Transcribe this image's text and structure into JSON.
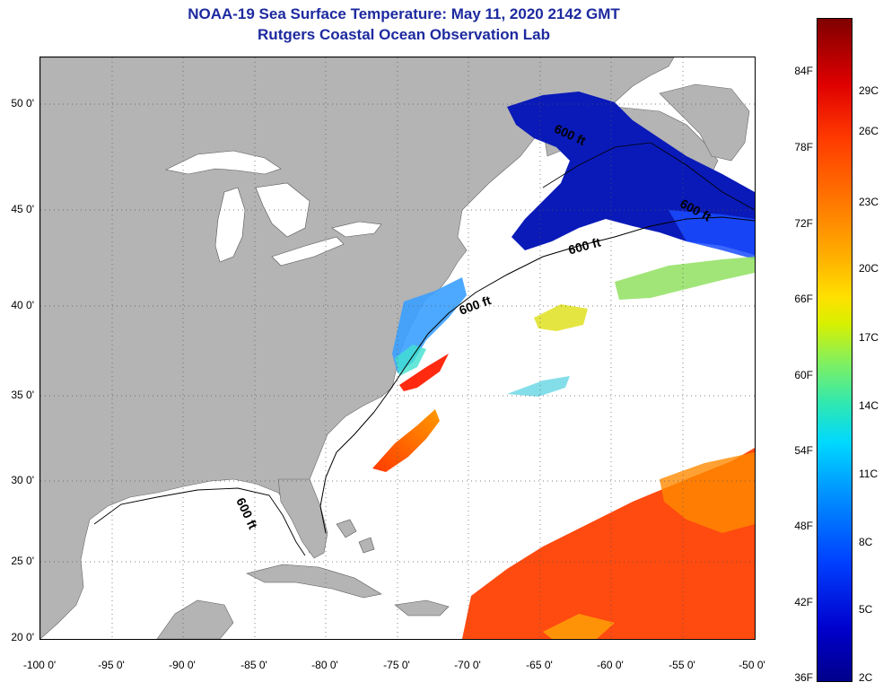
{
  "title": {
    "line1": "NOAA-19 Sea Surface Temperature:  May 11, 2020 2142 GMT",
    "line2": "Rutgers Coastal Ocean Observation Lab"
  },
  "map": {
    "lat_labels": [
      "50 0'",
      "45 0'",
      "40 0'",
      "35 0'",
      "30 0'",
      "25 0'",
      "20 0'"
    ],
    "lon_labels": [
      "-100 0'",
      "-95 0'",
      "-90 0'",
      "-85 0'",
      "-80 0'",
      "-75 0'",
      "-70 0'",
      "-65 0'",
      "-60 0'",
      "-55 0'",
      "-50 0'"
    ],
    "contour_labels": [
      "600 ft",
      "600 ft",
      "600 ft",
      "600 ft",
      "600 ft"
    ],
    "land_color": "#b4b4b4",
    "no_data_color": "#ffffff"
  },
  "colorbar": {
    "fahrenheit_labels": [
      "84F",
      "78F",
      "72F",
      "66F",
      "60F",
      "54F",
      "48F",
      "42F",
      "36F"
    ],
    "celsius_labels": [
      "29C",
      "26C",
      "23C",
      "20C",
      "17C",
      "14C",
      "11C",
      "8C",
      "5C",
      "2C"
    ]
  }
}
